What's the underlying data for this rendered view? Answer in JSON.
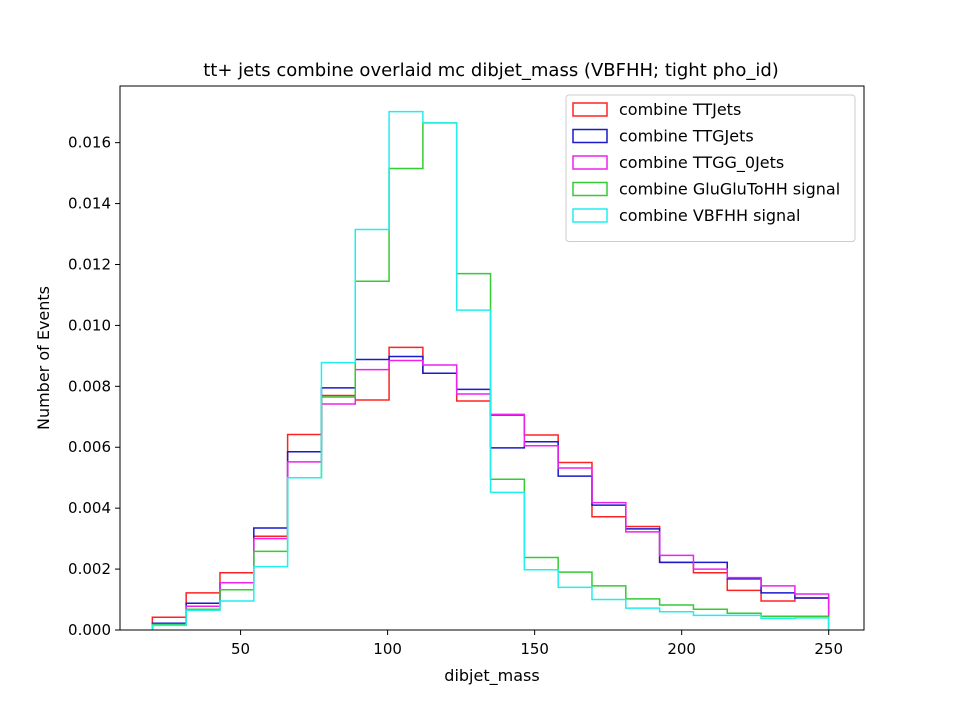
{
  "chart_data": {
    "type": "step_histogram",
    "title": "tt+ jets combine overlaid mc dibjet_mass (VBFHH; tight pho_id)",
    "xlabel": "dibjet_mass",
    "ylabel": "Number of Events",
    "xlim": [
      9,
      262
    ],
    "ylim": [
      0,
      0.01786
    ],
    "xticks": [
      50,
      100,
      150,
      200,
      250
    ],
    "xtick_labels": [
      "50",
      "100",
      "150",
      "200",
      "250"
    ],
    "yticks": [
      0.0,
      0.002,
      0.004,
      0.006,
      0.008,
      0.01,
      0.012,
      0.014,
      0.016
    ],
    "ytick_labels": [
      "0.000",
      "0.002",
      "0.004",
      "0.006",
      "0.008",
      "0.010",
      "0.012",
      "0.014",
      "0.016"
    ],
    "bin_edges": [
      20,
      31.5,
      43,
      54.5,
      66,
      77.5,
      89,
      100.5,
      112,
      123.5,
      135,
      146.5,
      158,
      169.5,
      181,
      192.5,
      204,
      215.5,
      227,
      238.5,
      250
    ],
    "legend_position": "top-right",
    "grid": false,
    "series": [
      {
        "name": "combine TTJets",
        "color": "#ff2222",
        "values": [
          0.00042,
          0.00122,
          0.00188,
          0.00308,
          0.00642,
          0.0077,
          0.00755,
          0.00928,
          0.00843,
          0.00752,
          0.00705,
          0.0064,
          0.0055,
          0.00372,
          0.0034,
          0.00222,
          0.00188,
          0.0013,
          0.00095,
          0.00105
        ]
      },
      {
        "name": "combine TTGJets",
        "color": "#1a1acc",
        "values": [
          0.00022,
          0.00088,
          0.00155,
          0.00335,
          0.00585,
          0.00795,
          0.00888,
          0.00898,
          0.00843,
          0.0079,
          0.00598,
          0.00618,
          0.00505,
          0.0041,
          0.00332,
          0.00222,
          0.00222,
          0.00168,
          0.00122,
          0.00105
        ]
      },
      {
        "name": "combine TTGG_0Jets",
        "color": "#ee22ee",
        "values": [
          0.00018,
          0.00078,
          0.00155,
          0.003,
          0.00552,
          0.00742,
          0.00855,
          0.00885,
          0.0087,
          0.00775,
          0.00708,
          0.00605,
          0.00532,
          0.00418,
          0.00322,
          0.00245,
          0.002,
          0.00172,
          0.00145,
          0.00118
        ]
      },
      {
        "name": "combine GluGluToHH signal",
        "color": "#33cc33",
        "values": [
          0.00018,
          0.00068,
          0.00132,
          0.00258,
          0.005,
          0.00765,
          0.01145,
          0.01515,
          0.01665,
          0.0117,
          0.00495,
          0.00238,
          0.0019,
          0.00145,
          0.00102,
          0.00082,
          0.00068,
          0.00055,
          0.00045,
          0.00045
        ]
      },
      {
        "name": "combine VBFHH signal",
        "color": "#22eeee",
        "values": [
          0.00015,
          0.00065,
          0.00095,
          0.00208,
          0.005,
          0.00878,
          0.01315,
          0.01702,
          0.01665,
          0.0105,
          0.00452,
          0.00198,
          0.0014,
          0.001,
          0.00072,
          0.0006,
          0.00048,
          0.00048,
          0.00038,
          0.0004
        ]
      }
    ]
  }
}
